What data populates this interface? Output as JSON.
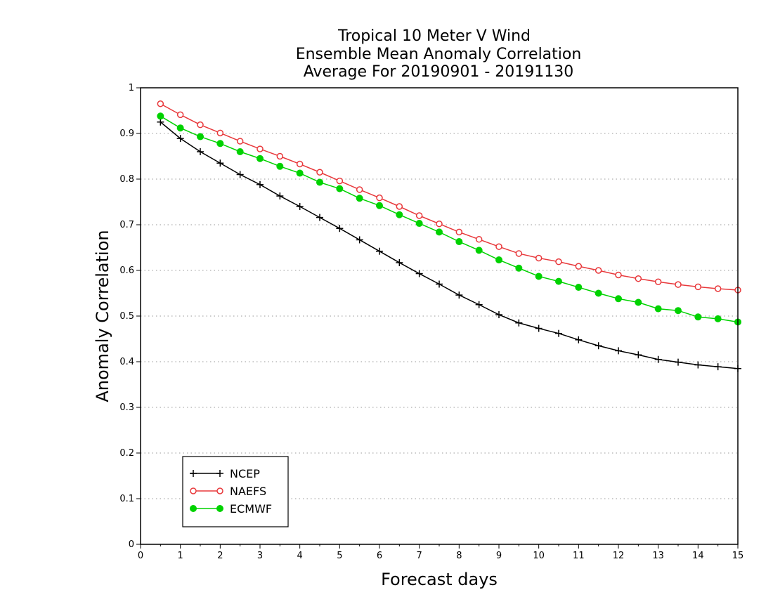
{
  "chart_data": {
    "type": "line",
    "title_lines": [
      "Tropical 10 Meter V Wind",
      "Ensemble Mean Anomaly Correlation",
      "Average For 20190901 - 20191130"
    ],
    "xlabel": "Forecast days",
    "ylabel": "Anomaly Correlation",
    "xlim": [
      0,
      15
    ],
    "ylim": [
      0,
      1
    ],
    "xticks": [
      "0",
      "1",
      "2",
      "3",
      "4",
      "5",
      "6",
      "7",
      "8",
      "9",
      "10",
      "11",
      "12",
      "13",
      "14",
      "15"
    ],
    "yticks": [
      "0",
      "0.1",
      "0.2",
      "0.3",
      "0.4",
      "0.5",
      "0.6",
      "0.7",
      "0.8",
      "0.9",
      "1"
    ],
    "grid": "horizontal dotted",
    "legend_position": "bottom-left",
    "x": [
      0.5,
      1,
      1.5,
      2,
      2.5,
      3,
      3.5,
      4,
      4.5,
      5,
      5.5,
      6,
      6.5,
      7,
      7.5,
      8,
      8.5,
      9,
      9.5,
      10,
      10.5,
      11,
      11.5,
      12,
      12.5,
      13,
      13.5,
      14,
      14.5,
      15
    ],
    "series": [
      {
        "name": "NCEP",
        "color": "#000000",
        "marker": "plus",
        "values": [
          0.925,
          0.889,
          0.86,
          0.835,
          0.81,
          0.788,
          0.763,
          0.74,
          0.716,
          0.692,
          0.667,
          0.642,
          0.617,
          0.593,
          0.57,
          0.546,
          0.525,
          0.503,
          0.485,
          0.473,
          0.462,
          0.448,
          0.435,
          0.424,
          0.415,
          0.405,
          0.399,
          0.393,
          0.389,
          0.385
        ]
      },
      {
        "name": "NAEFS",
        "color": "#e8383b",
        "marker": "open-circle",
        "values": [
          0.965,
          0.941,
          0.919,
          0.901,
          0.883,
          0.866,
          0.85,
          0.833,
          0.815,
          0.796,
          0.777,
          0.759,
          0.74,
          0.72,
          0.702,
          0.684,
          0.668,
          0.652,
          0.637,
          0.627,
          0.619,
          0.609,
          0.6,
          0.59,
          0.582,
          0.575,
          0.569,
          0.564,
          0.56,
          0.557
        ]
      },
      {
        "name": "ECMWF",
        "color": "#00d200",
        "marker": "filled-circle",
        "values": [
          0.938,
          0.912,
          0.893,
          0.878,
          0.86,
          0.845,
          0.828,
          0.813,
          0.793,
          0.779,
          0.758,
          0.742,
          0.722,
          0.703,
          0.684,
          0.663,
          0.644,
          0.623,
          0.605,
          0.587,
          0.576,
          0.563,
          0.55,
          0.538,
          0.53,
          0.516,
          0.512,
          0.498,
          0.494,
          0.487
        ]
      }
    ]
  }
}
